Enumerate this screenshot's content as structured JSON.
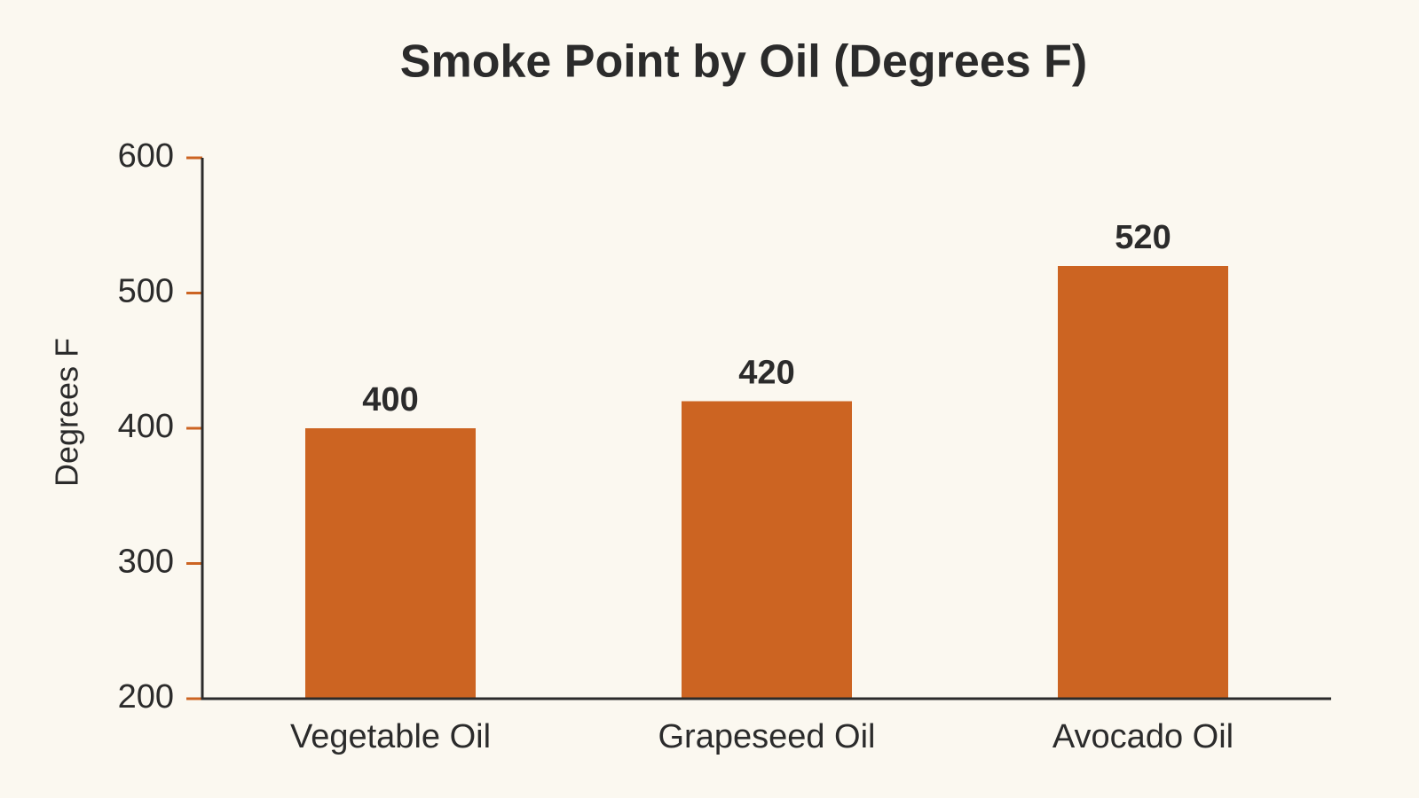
{
  "chart_data": {
    "type": "bar",
    "title": "Smoke Point by Oil (Degrees F)",
    "y_label": "Degrees F",
    "categories": [
      "Vegetable Oil",
      "Grapeseed Oil",
      "Avocado Oil"
    ],
    "values": [
      400,
      420,
      520
    ],
    "color": "#cc6422",
    "ylim": [
      200,
      600
    ],
    "yticks": [
      200,
      300,
      400,
      500,
      600
    ]
  }
}
